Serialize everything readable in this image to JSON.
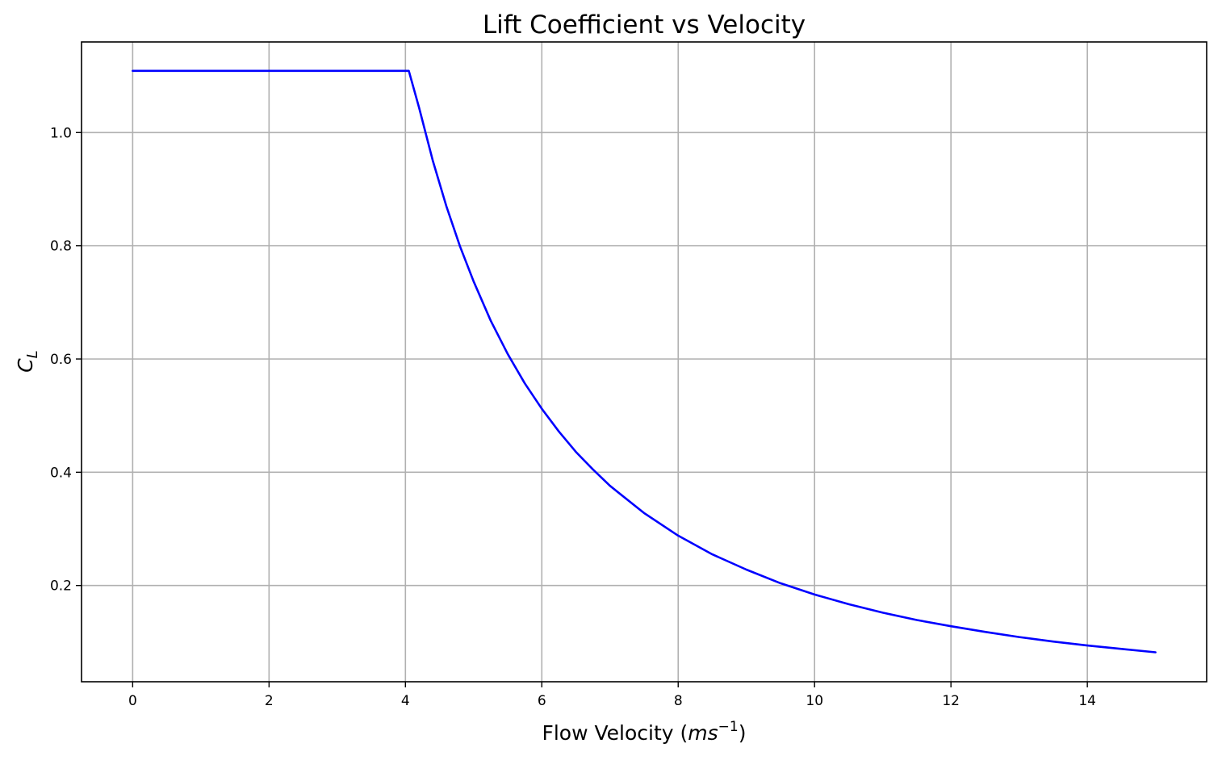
{
  "chart_data": {
    "type": "line",
    "title": "Lift Coefficient vs Velocity",
    "xlabel": "Flow Velocity",
    "xlabel_unit_open": " (",
    "xlabel_unit_base": "ms",
    "xlabel_unit_exp": "−1",
    "xlabel_unit_close": ")",
    "ylabel_main": "C",
    "ylabel_sub": "L",
    "xlim": [
      -0.75,
      15.75
    ],
    "ylim": [
      0.03,
      1.16
    ],
    "xticks": [
      0,
      2,
      4,
      6,
      8,
      10,
      12,
      14
    ],
    "xtick_labels": [
      "0",
      "2",
      "4",
      "6",
      "8",
      "10",
      "12",
      "14"
    ],
    "yticks": [
      0.2,
      0.4,
      0.6,
      0.8,
      1.0
    ],
    "ytick_labels": [
      "0.2",
      "0.4",
      "0.6",
      "0.8",
      "1.0"
    ],
    "grid": true,
    "series": [
      {
        "color": "#0000ff",
        "x": [
          0,
          4.0,
          4.05,
          4.2,
          4.4,
          4.6,
          4.8,
          5.0,
          5.25,
          5.5,
          5.75,
          6.0,
          6.25,
          6.5,
          6.75,
          7.0,
          7.5,
          8.0,
          8.5,
          9.0,
          9.5,
          10.0,
          10.5,
          11.0,
          11.5,
          12.0,
          12.5,
          13.0,
          13.5,
          14.0,
          14.5,
          15.0
        ],
        "y": [
          1.109,
          1.109,
          1.109,
          1.044,
          0.951,
          0.87,
          0.799,
          0.737,
          0.668,
          0.609,
          0.557,
          0.512,
          0.472,
          0.436,
          0.405,
          0.376,
          0.328,
          0.288,
          0.255,
          0.228,
          0.204,
          0.184,
          0.167,
          0.152,
          0.139,
          0.128,
          0.118,
          0.109,
          0.101,
          0.094,
          0.088,
          0.082
        ]
      }
    ]
  }
}
